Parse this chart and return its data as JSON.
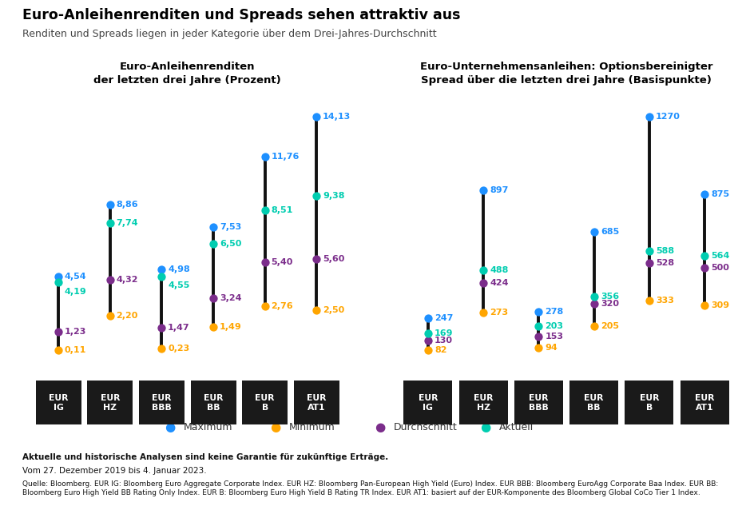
{
  "title": "Euro-Anleihenrenditen und Spreads sehen attraktiv aus",
  "subtitle": "Renditen und Spreads liegen in jeder Kategorie über dem Drei-Jahres-Durchschnitt",
  "left_chart_title": "Euro-Anleihenrenditen\nder letzten drei Jahre (Prozent)",
  "right_chart_title": "Euro-Unternehmensanleihen: Optionsbereinigter\nSpread über die letzten drei Jahre (Basispunkte)",
  "categories": [
    "EUR\nIG",
    "EUR\nHZ",
    "EUR\nBBB",
    "EUR\nBB",
    "EUR\nB",
    "EUR\nAT1"
  ],
  "left_data": {
    "maximum": [
      4.54,
      8.86,
      4.98,
      7.53,
      11.76,
      14.13
    ],
    "minimum": [
      0.11,
      2.2,
      0.23,
      1.49,
      2.76,
      2.5
    ],
    "average": [
      1.23,
      4.32,
      1.47,
      3.24,
      5.4,
      5.6
    ],
    "current": [
      4.19,
      7.74,
      4.55,
      6.5,
      8.51,
      9.38
    ]
  },
  "right_data": {
    "maximum": [
      247,
      897,
      278,
      685,
      1270,
      875
    ],
    "minimum": [
      82,
      273,
      94,
      205,
      333,
      309
    ],
    "average": [
      130,
      424,
      153,
      320,
      528,
      500
    ],
    "current": [
      169,
      488,
      203,
      356,
      588,
      564
    ]
  },
  "colors": {
    "maximum": "#1E90FF",
    "minimum": "#FFA500",
    "average": "#7B2D8B",
    "current": "#00CDB0",
    "line": "#111111"
  },
  "legend_items": [
    "Maximum",
    "Minimum",
    "Durchschnitt",
    "Aktuell"
  ],
  "footnote1": "Aktuelle und historische Analysen sind keine Garantie für zukünftige Erträge.",
  "footnote2": "Vom 27. Dezember 2019 bis 4. Januar 2023.",
  "footnote3": "Quelle: Bloomberg. EUR IG: Bloomberg Euro Aggregate Corporate Index. EUR HZ: Bloomberg Pan-European High Yield (Euro) Index. EUR BBB: Bloomberg EuroAgg Corporate Baa Index. EUR BB: Bloomberg Euro High Yield BB Rating Only Index. EUR B: Bloomberg Euro High Yield B Rating TR Index. EUR AT1: basiert auf der EUR-Komponente des Bloomberg Global CoCo Tier 1 Index."
}
